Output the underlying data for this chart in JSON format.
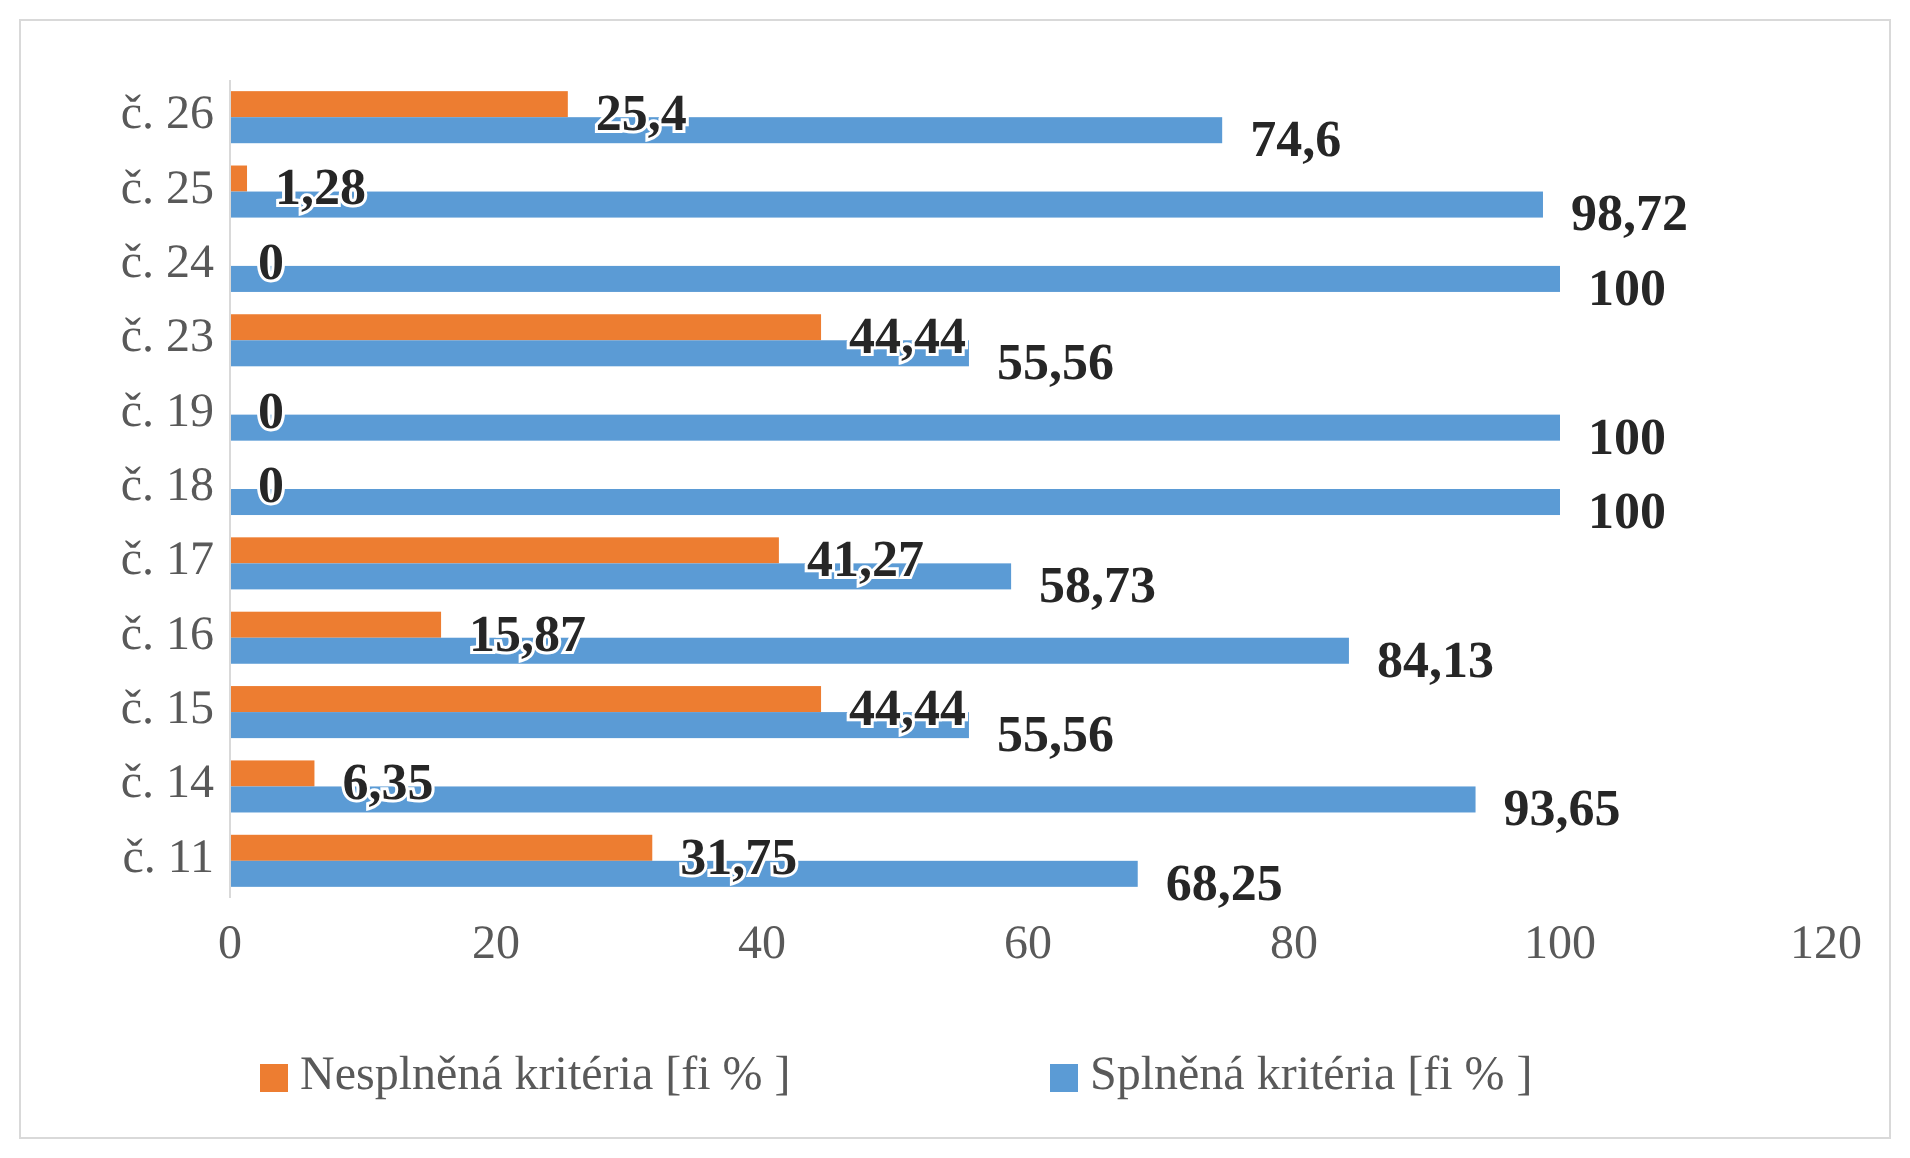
{
  "chart_data": {
    "type": "bar",
    "orientation": "horizontal",
    "categories": [
      "č. 26",
      "č. 25",
      "č. 24",
      "č. 23",
      "č. 19",
      "č. 18",
      "č. 17",
      "č. 16",
      "č. 15",
      "č. 14",
      "č. 11"
    ],
    "series": [
      {
        "name": "Nesplněná kritéria [fi % ]",
        "color": "#ed7d31",
        "values": [
          25.4,
          1.28,
          0,
          44.44,
          0,
          0,
          41.27,
          15.87,
          44.44,
          6.35,
          31.75
        ],
        "value_labels": [
          "25,4",
          "1,28",
          "0",
          "44,44",
          "0",
          "0",
          "41,27",
          "15,87",
          "44,44",
          "6,35",
          "31,75"
        ]
      },
      {
        "name": "Splněná kritéria [fi % ]",
        "color": "#5b9bd5",
        "values": [
          74.6,
          98.72,
          100,
          55.56,
          100,
          100,
          58.73,
          84.13,
          55.56,
          93.65,
          68.25
        ],
        "value_labels": [
          "74,6",
          "98,72",
          "100",
          "55,56",
          "100",
          "100",
          "58,73",
          "84,13",
          "55,56",
          "93,65",
          "68,25"
        ]
      }
    ],
    "xlim": [
      0,
      120
    ],
    "xticks": [
      0,
      20,
      40,
      60,
      80,
      100,
      120
    ],
    "grid": false,
    "legend": "bottom"
  }
}
